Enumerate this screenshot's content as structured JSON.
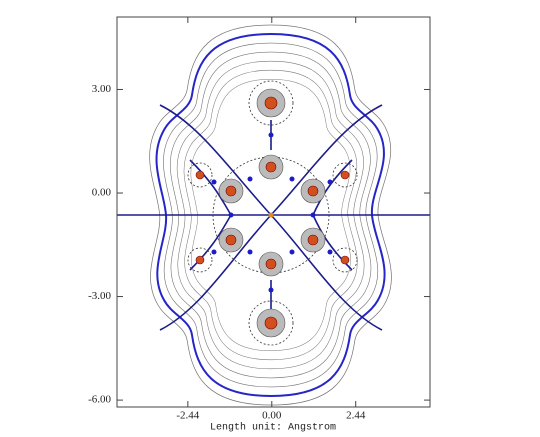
{
  "chart_data": {
    "type": "contour",
    "xlabel": "Length unit: Angstrom",
    "xlim": [
      -4.5,
      4.6
    ],
    "ylim": [
      -6.2,
      5.1
    ],
    "xticks": [
      -2.44,
      {
        "value": 0,
        "label": "0.00"
      },
      2.44
    ],
    "yticks": [
      {
        "value": 3,
        "label": "3.00"
      },
      {
        "value": 0,
        "label": "0.00"
      },
      {
        "value": -3,
        "label": "-3.00"
      },
      {
        "value": -6,
        "label": "-6.00"
      }
    ]
  }
}
